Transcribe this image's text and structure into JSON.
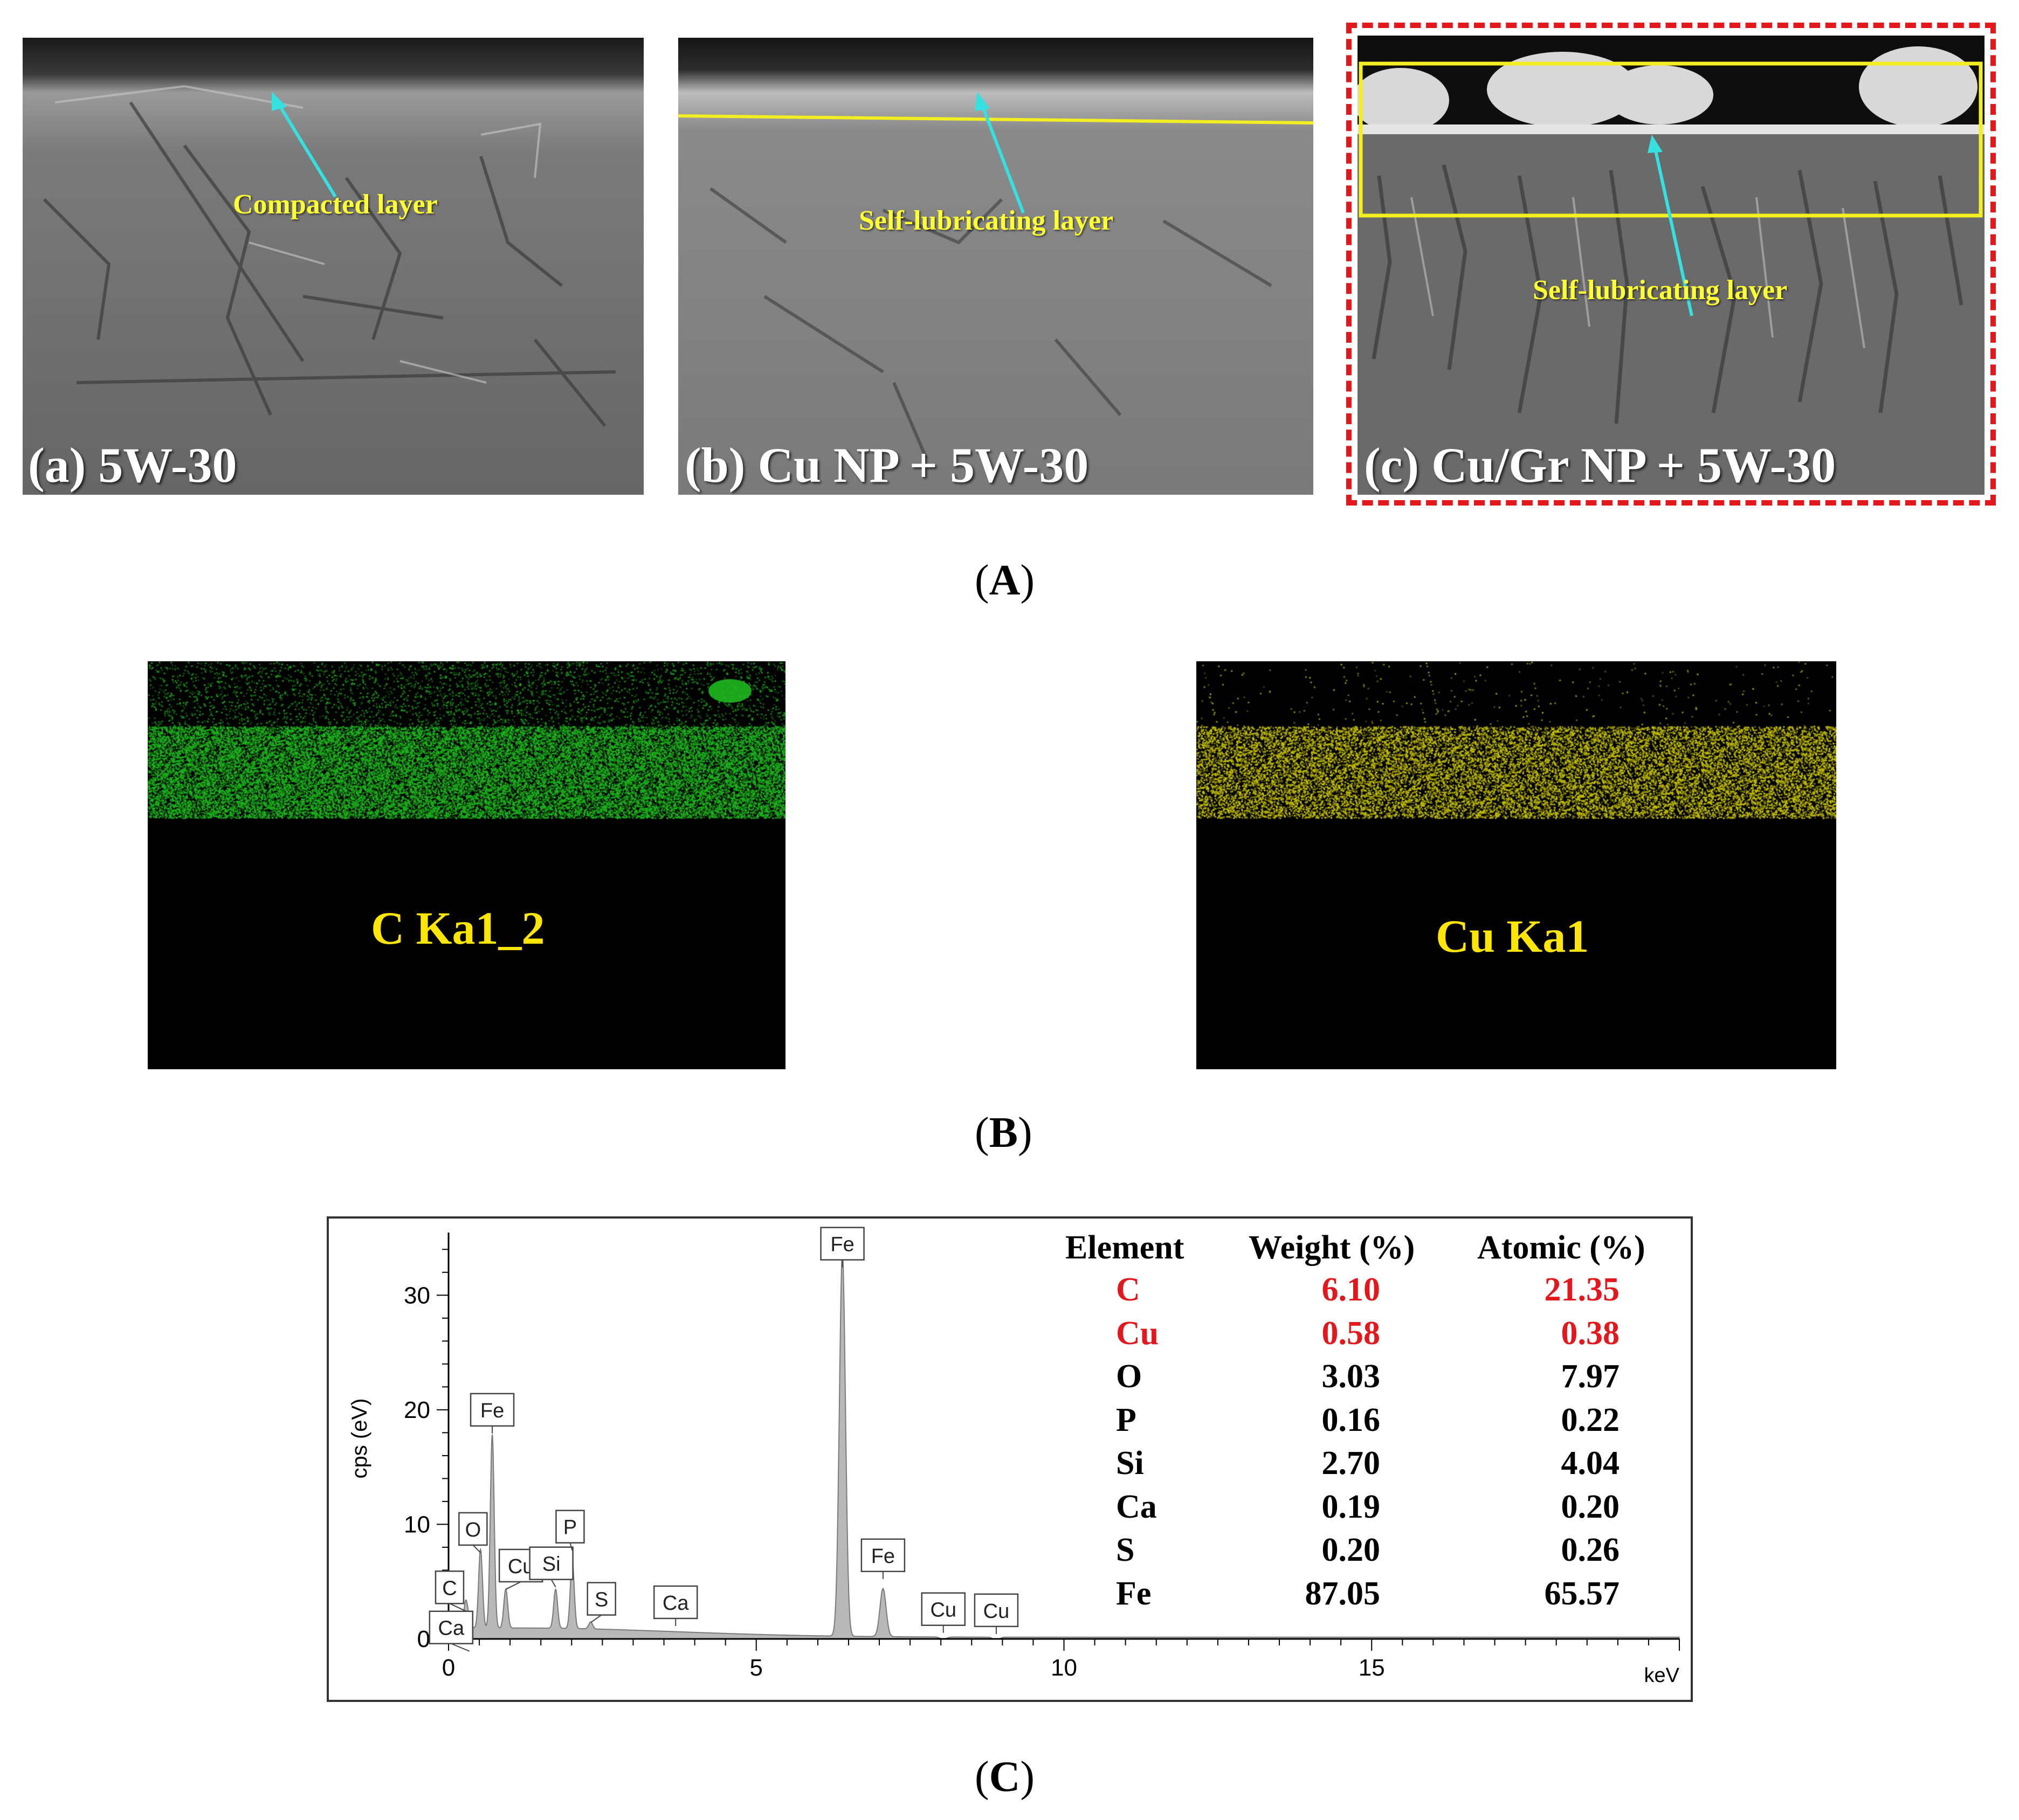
{
  "panel_a": {
    "images": [
      {
        "caption": "(a) 5W-30",
        "annotation": "Compacted layer"
      },
      {
        "caption": "(b) Cu NP + 5W-30",
        "annotation": "Self-lubricating layer"
      },
      {
        "caption": "(c) Cu/Gr NP + 5W-30",
        "annotation": "Self-lubricating layer"
      }
    ],
    "label_open": "(",
    "label_letter": "A",
    "label_close": ")"
  },
  "panel_b": {
    "maps": [
      {
        "label": "C Ka1_2",
        "color": "#1fb81f"
      },
      {
        "label": "Cu Ka1",
        "color": "#c9c400"
      }
    ],
    "label_open": "(",
    "label_letter": "B",
    "label_close": ")"
  },
  "panel_c": {
    "label_open": "(",
    "label_letter": "C",
    "label_close": ")",
    "table": {
      "headers": [
        "Element",
        "Weight (%)",
        "Atomic (%)"
      ],
      "rows": [
        {
          "element": "C",
          "weight": "6.10",
          "atomic": "21.35",
          "highlight": true
        },
        {
          "element": "Cu",
          "weight": "0.58",
          "atomic": "0.38",
          "highlight": true
        },
        {
          "element": "O",
          "weight": "3.03",
          "atomic": "7.97",
          "highlight": false
        },
        {
          "element": "P",
          "weight": "0.16",
          "atomic": "0.22",
          "highlight": false
        },
        {
          "element": "Si",
          "weight": "2.70",
          "atomic": "4.04",
          "highlight": false
        },
        {
          "element": "Ca",
          "weight": "0.19",
          "atomic": "0.20",
          "highlight": false
        },
        {
          "element": "S",
          "weight": "0.20",
          "atomic": "0.26",
          "highlight": false
        },
        {
          "element": "Fe",
          "weight": "87.05",
          "atomic": "65.57",
          "highlight": false
        }
      ],
      "highlight_color": "#e3171c"
    }
  },
  "chart_data": {
    "type": "area",
    "xlabel": "keV",
    "ylabel": "cps (eV)",
    "xlim": [
      0,
      20
    ],
    "ylim": [
      0,
      35
    ],
    "x_ticks": [
      0,
      5,
      10,
      15
    ],
    "y_ticks": [
      0,
      10,
      20,
      30
    ],
    "peaks": [
      {
        "name": "C",
        "x": 0.28,
        "y": 3.0
      },
      {
        "name": "Ca",
        "x": 0.34,
        "y": 1.2
      },
      {
        "name": "O",
        "x": 0.52,
        "y": 7.5
      },
      {
        "name": "Cu",
        "x": 0.93,
        "y": 4.0
      },
      {
        "name": "Fe",
        "x": 0.71,
        "y": 17.5
      },
      {
        "name": "Si",
        "x": 1.74,
        "y": 4.0
      },
      {
        "name": "P",
        "x": 2.01,
        "y": 6.5
      },
      {
        "name": "S",
        "x": 2.31,
        "y": 1.2
      },
      {
        "name": "Ca",
        "x": 3.69,
        "y": 0.6
      },
      {
        "name": "Fe",
        "x": 6.4,
        "y": 34.0
      },
      {
        "name": "Fe",
        "x": 7.06,
        "y": 4.8
      },
      {
        "name": "Cu",
        "x": 8.04,
        "y": 0.4
      },
      {
        "name": "Cu",
        "x": 8.9,
        "y": 0.3
      }
    ],
    "background_level": 0.8,
    "fill_color": "#b8b8b8"
  }
}
